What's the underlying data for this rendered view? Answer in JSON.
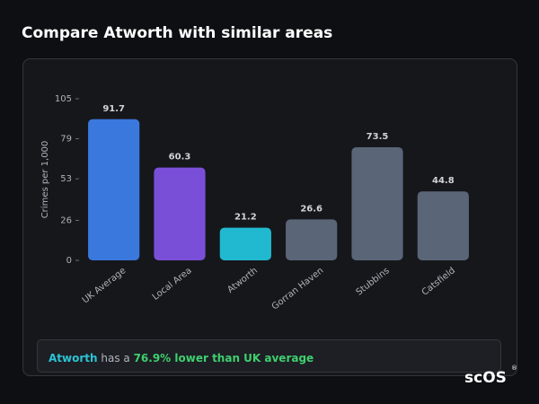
{
  "header": {
    "title": "Compare Atworth with similar areas"
  },
  "chart_data": {
    "type": "bar",
    "y_label": "Crimes per 1,000",
    "categories": [
      "UK Average",
      "Local Area",
      "Atworth",
      "Gorran Haven",
      "Stubbins",
      "Catsfield"
    ],
    "values": [
      91.7,
      60.3,
      21.2,
      26.6,
      73.5,
      44.8
    ],
    "colors": [
      "#3a78dd",
      "#7a4fd8",
      "#21b9cf",
      "#5a6577",
      "#5a6577",
      "#5a6577"
    ],
    "ylim": [
      0,
      105
    ],
    "yticks": [
      0,
      26,
      53,
      79,
      105
    ],
    "grid": false
  },
  "note": {
    "place": "Atworth",
    "connector": " has a ",
    "highlight": "76.9% lower than UK average"
  },
  "logo": {
    "text": "scOS",
    "mark": "®"
  }
}
